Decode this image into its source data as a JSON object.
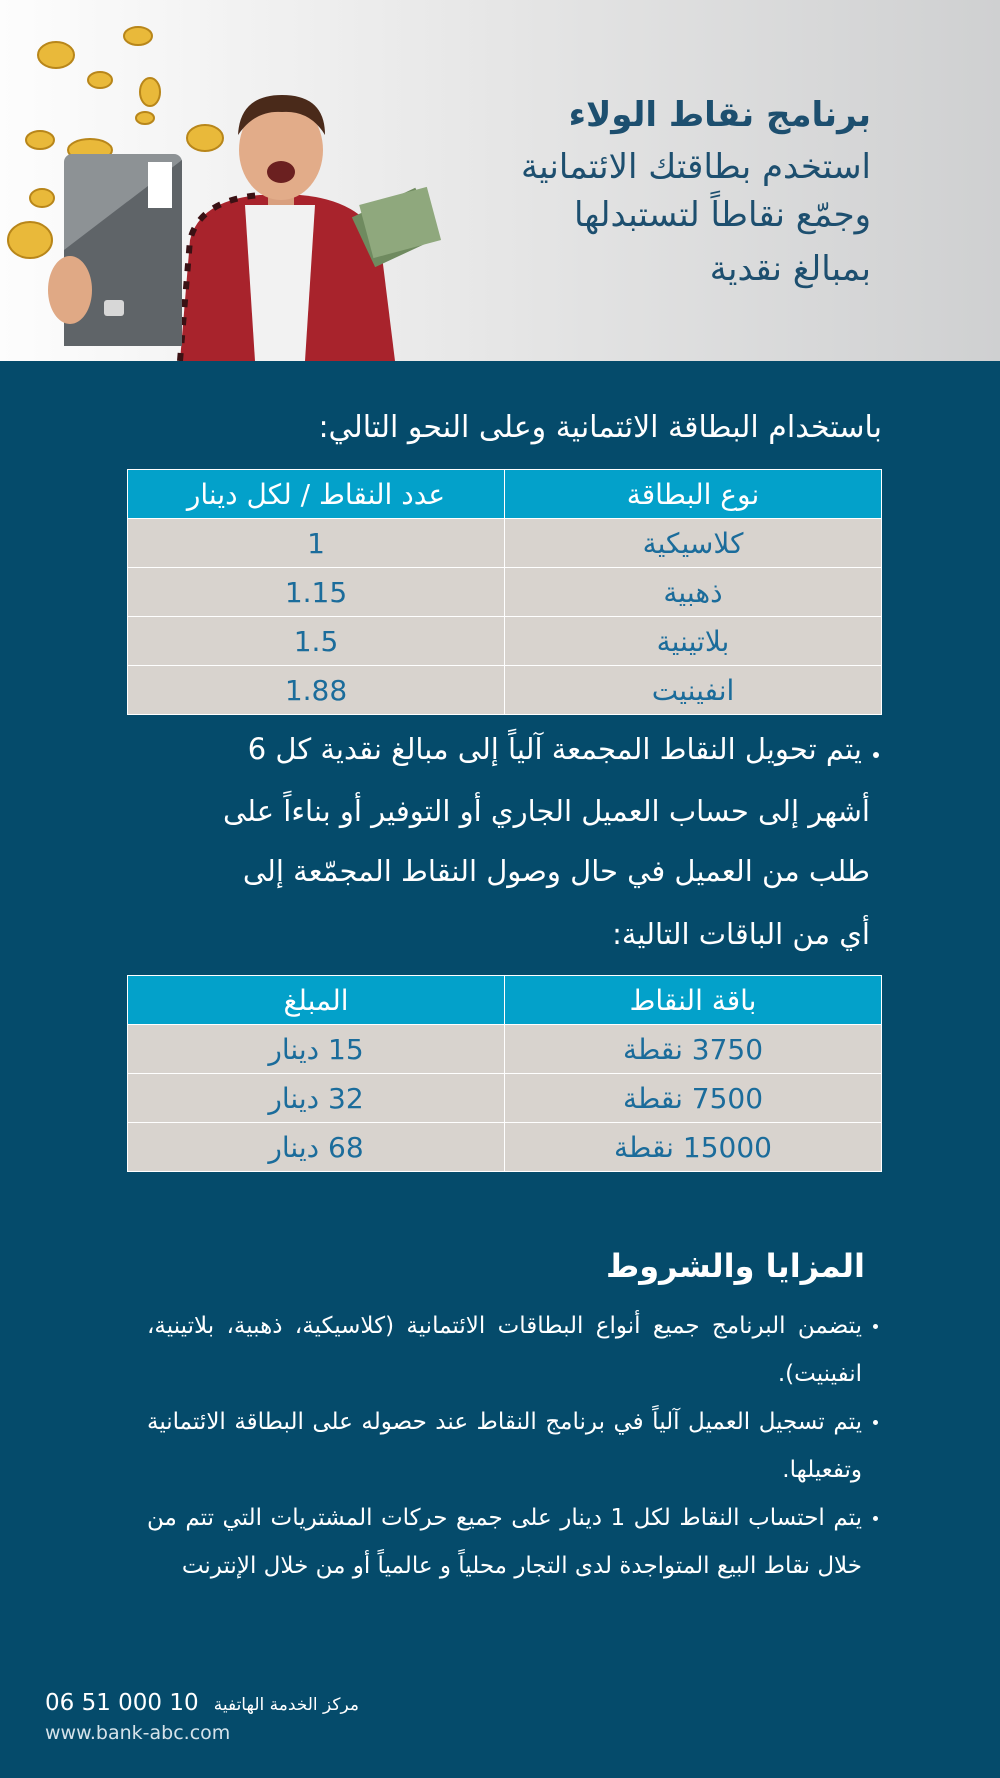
{
  "header": {
    "title": "برنامج نقاط الولاء",
    "lines": [
      "استخدم بطاقتك الائتمانية",
      "وجمّع نقاطاً لتستبدلها",
      "بمبالغ نقدية"
    ]
  },
  "intro": "باستخدام البطاقة الائتمانية وعلى النحو التالي:",
  "points_table": {
    "headers": [
      "نوع البطاقة",
      "عدد النقاط / لكل دينار"
    ],
    "rows": [
      [
        "كلاسيكية",
        "1"
      ],
      [
        "ذهبية",
        "1.15"
      ],
      [
        "بلاتينية",
        "1.5"
      ],
      [
        "انفينيت",
        "1.88"
      ]
    ]
  },
  "conversion": {
    "lines": [
      "يتم تحويل النقاط المجمعة آلياً إلى مبالغ نقدية كل 6",
      "أشهر إلى حساب العميل الجاري أو التوفير أو بناءاً على",
      "طلب من العميل في حال وصول النقاط المجمّعة إلى",
      "أي من الباقات التالية:"
    ]
  },
  "packages_table": {
    "headers": [
      "باقة النقاط",
      "المبلغ"
    ],
    "rows": [
      [
        "3750 نقطة",
        "15 دينار"
      ],
      [
        "7500 نقطة",
        "32 دينار"
      ],
      [
        "15000 نقطة",
        "68 دينار"
      ]
    ]
  },
  "terms": {
    "title": "المزايا والشروط",
    "items": [
      "يتضمن البرنامج جميع أنواع البطاقات الائتمانية (كلاسيكية، ذهبية، بلاتينية، انفينيت).",
      "يتم تسجيل العميل آلياً في برنامج النقاط عند حصوله على البطاقة الائتمانية وتفعيلها.",
      "يتم احتساب النقاط لكل 1 دينار على جميع حركات المشتريات التي تتم من خلال نقاط البيع المتواجدة لدى التجار محلياً و عالمياً أو من خلال الإنترنت"
    ]
  },
  "footer": {
    "phone_label": "مركز الخدمة الهاتفية",
    "phone": "06 51 000 10",
    "website": "www.bank-abc.com"
  }
}
